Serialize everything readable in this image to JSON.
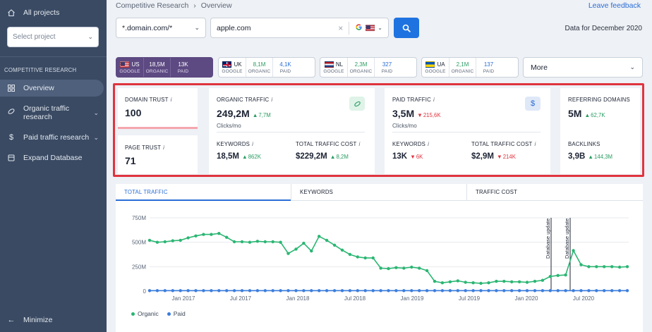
{
  "sidebar": {
    "all_projects": "All projects",
    "select_project_placeholder": "Select project",
    "section": "COMPETITIVE RESEARCH",
    "items": [
      {
        "label": "Overview",
        "icon": "grid-icon",
        "active": true
      },
      {
        "label": "Organic traffic research",
        "icon": "leaf-icon",
        "expandable": true
      },
      {
        "label": "Paid traffic research",
        "icon": "dollar-icon",
        "expandable": true
      },
      {
        "label": "Expand Database",
        "icon": "database-icon"
      }
    ],
    "minimize": "Minimize"
  },
  "header": {
    "breadcrumb": [
      "Competitive Research",
      "Overview"
    ],
    "leave_feedback": "Leave feedback",
    "domain_mode": "*.domain.com/*",
    "search_value": "apple.com",
    "data_for": "Data for December 2020"
  },
  "regions": [
    {
      "code": "US",
      "engine": "GOOGLE",
      "organic": "18,5M",
      "paid": "13K",
      "organic_label": "ORGANIC",
      "paid_label": "PAID",
      "active": true
    },
    {
      "code": "UK",
      "engine": "GOOGLE",
      "organic": "8,1M",
      "paid": "4,1K",
      "organic_label": "ORGANIC",
      "paid_label": "PAID"
    },
    {
      "code": "NL",
      "engine": "GOOGLE",
      "organic": "2,3M",
      "paid": "327",
      "organic_label": "ORGANIC",
      "paid_label": "PAID"
    },
    {
      "code": "UA",
      "engine": "GOOGLE",
      "organic": "2,1M",
      "paid": "137",
      "organic_label": "ORGANIC",
      "paid_label": "PAID"
    }
  ],
  "more_label": "More",
  "metrics": {
    "domain_trust": {
      "label": "DOMAIN TRUST",
      "value": "100"
    },
    "page_trust": {
      "label": "PAGE TRUST",
      "value": "71"
    },
    "organic": {
      "label": "ORGANIC TRAFFIC",
      "value": "249,2M",
      "change": "7,7M",
      "sub": "Clicks/mo",
      "keywords_label": "KEYWORDS",
      "keywords": "18,5M",
      "keywords_change": "862K",
      "cost_label": "TOTAL TRAFFIC COST",
      "cost": "$229,2M",
      "cost_change": "8,2M"
    },
    "paid": {
      "label": "PAID TRAFFIC",
      "value": "3,5M",
      "change": "215,6K",
      "sub": "Clicks/mo",
      "keywords_label": "KEYWORDS",
      "keywords": "13K",
      "keywords_change": "6K",
      "cost_label": "TOTAL TRAFFIC COST",
      "cost": "$2,9M",
      "cost_change": "214K"
    },
    "referring": {
      "label": "REFERRING DOMAINS",
      "value": "5M",
      "change": "62,7K",
      "backlinks_label": "BACKLINKS",
      "backlinks": "3,9B",
      "backlinks_change": "144,3M"
    }
  },
  "chart_tabs": [
    "TOTAL TRAFFIC",
    "KEYWORDS",
    "TRAFFIC COST"
  ],
  "colors": {
    "organic": "#2bb673",
    "paid": "#3b7ddd",
    "accent": "#1f73e0",
    "highlight": "#e0343f",
    "sidebar": "#3a4a63"
  },
  "chart_data": {
    "type": "line",
    "y_ticks": [
      "750M",
      "500M",
      "250M",
      "0"
    ],
    "x_ticks": [
      "Jan 2017",
      "Jul 2017",
      "Jan 2018",
      "Jul 2018",
      "Jan 2019",
      "Jul 2019",
      "Jan 2020",
      "Jul 2020"
    ],
    "ylim": [
      0,
      750
    ],
    "annotations": [
      "Database update",
      "Database update"
    ],
    "series": [
      {
        "name": "Organic",
        "values": [
          520,
          500,
          505,
          515,
          520,
          545,
          565,
          580,
          580,
          590,
          550,
          505,
          505,
          500,
          510,
          505,
          505,
          500,
          385,
          430,
          490,
          410,
          560,
          520,
          470,
          420,
          375,
          350,
          340,
          340,
          235,
          230,
          240,
          235,
          245,
          235,
          210,
          100,
          85,
          95,
          105,
          90,
          85,
          80,
          85,
          100,
          100,
          95,
          95,
          90,
          100,
          110,
          150,
          160,
          165,
          415,
          270,
          250,
          250,
          250,
          250,
          245,
          250
        ]
      },
      {
        "name": "Paid",
        "values": [
          5,
          5,
          5,
          5,
          5,
          5,
          5,
          5,
          5,
          5,
          5,
          5,
          5,
          5,
          5,
          5,
          5,
          5,
          5,
          5,
          5,
          5,
          5,
          5,
          5,
          5,
          5,
          5,
          5,
          5,
          5,
          5,
          5,
          5,
          5,
          5,
          5,
          5,
          5,
          5,
          5,
          5,
          5,
          5,
          5,
          5,
          5,
          5,
          5,
          5,
          5,
          5,
          5,
          5,
          5,
          5,
          5,
          5,
          5,
          5,
          5,
          5,
          5
        ]
      }
    ]
  }
}
